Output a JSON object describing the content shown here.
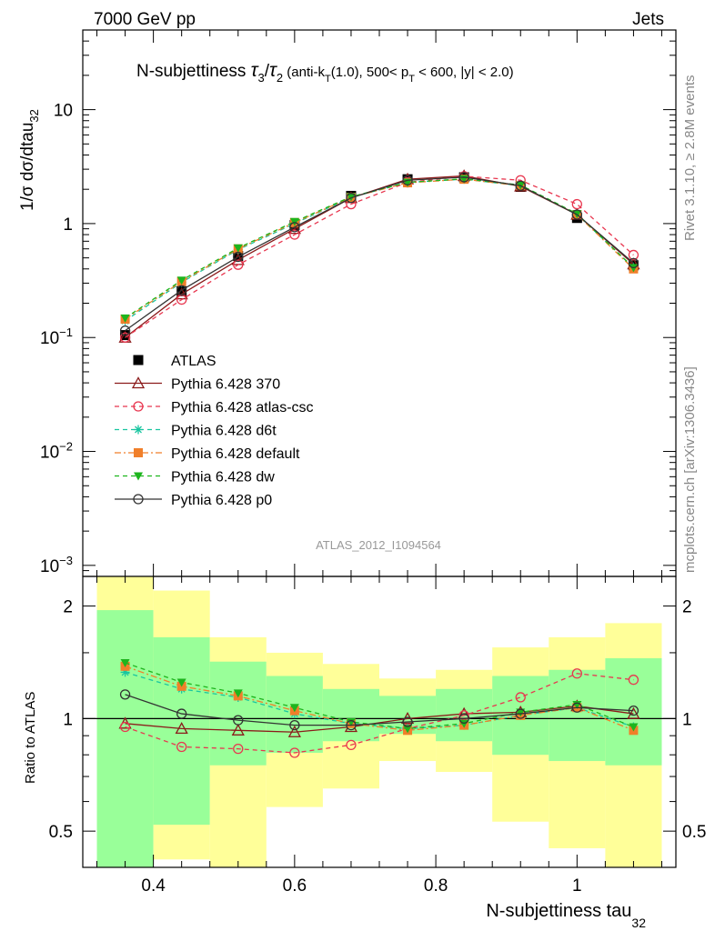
{
  "header": {
    "left": "7000 GeV pp",
    "right": "Jets"
  },
  "side_labels": {
    "rivet": "Rivet 3.1.10, ≥ 2.8M events",
    "mcplots": "mcplots.cern.ch [arXiv:1306.3436]"
  },
  "analysis_id": "ATLAS_2012_I1094564",
  "chart_data": [
    {
      "type": "line",
      "panel": "main",
      "title": "N-subjettiness τ₃/τ₂ (anti-k_T(1.0), 500< p_T < 600, |y| < 2.0)",
      "title_parts": {
        "main": "N-subjettiness ",
        "tau": "τ",
        "sub3": "3",
        "slash": "/",
        "sub2": "2",
        "cond_a": " (anti-k",
        "cond_T1": "T",
        "cond_b": "(1.0), 500< p",
        "cond_T2": "T",
        "cond_c": " < 600, |y| < 2.0)"
      },
      "ylabel": "1/σ dσ/dtau",
      "ylabel_sub": "32",
      "yscale": "log",
      "ylim": [
        0.0008,
        50
      ],
      "xlim": [
        0.3,
        1.14
      ],
      "y_ticks": [
        {
          "value": 10,
          "label": "10"
        },
        {
          "value": 1,
          "label": "1"
        },
        {
          "value": 0.1,
          "base": "10",
          "exp": "−1"
        },
        {
          "value": 0.01,
          "base": "10",
          "exp": "−2"
        },
        {
          "value": 0.001,
          "base": "10",
          "exp": "−3"
        }
      ],
      "x": [
        0.36,
        0.44,
        0.52,
        0.6,
        0.68,
        0.76,
        0.84,
        0.92,
        1.0,
        1.08
      ],
      "series": [
        {
          "name": "ATLAS",
          "color": "#000000",
          "marker": "square-filled",
          "line": "none",
          "values": [
            0.105,
            0.255,
            0.52,
            0.97,
            1.75,
            2.45,
            2.55,
            2.1,
            1.12,
            0.43
          ]
        },
        {
          "name": "Pythia 6.428 370",
          "color": "#8b1a1a",
          "marker": "triangle-open",
          "line": "solid",
          "values": [
            0.1,
            0.24,
            0.48,
            0.9,
            1.68,
            2.45,
            2.62,
            2.12,
            1.2,
            0.44
          ]
        },
        {
          "name": "Pythia 6.428 atlas-csc",
          "color": "#e8364f",
          "marker": "circle-open",
          "line": "dashed",
          "values": [
            0.1,
            0.215,
            0.435,
            0.8,
            1.48,
            2.3,
            2.6,
            2.4,
            1.48,
            0.53
          ]
        },
        {
          "name": "Pythia 6.428 d6t",
          "color": "#19c5a0",
          "marker": "star",
          "line": "dashed",
          "values": [
            0.14,
            0.305,
            0.59,
            1.0,
            1.7,
            2.3,
            2.45,
            2.15,
            1.2,
            0.41
          ]
        },
        {
          "name": "Pythia 6.428 default",
          "color": "#f07f2a",
          "marker": "square-filled",
          "line": "dashdot",
          "values": [
            0.145,
            0.31,
            0.6,
            1.02,
            1.7,
            2.28,
            2.45,
            2.15,
            1.2,
            0.4
          ]
        },
        {
          "name": "Pythia 6.428 dw",
          "color": "#1db51d",
          "marker": "triangle-down-filled",
          "line": "dashed",
          "values": [
            0.148,
            0.318,
            0.61,
            1.04,
            1.72,
            2.3,
            2.47,
            2.18,
            1.22,
            0.41
          ]
        },
        {
          "name": "Pythia 6.428 p0",
          "color": "#333333",
          "marker": "circle-open",
          "line": "solid",
          "values": [
            0.115,
            0.26,
            0.51,
            0.93,
            1.68,
            2.4,
            2.55,
            2.15,
            1.2,
            0.45
          ]
        }
      ],
      "legend_placement": "lower-left"
    },
    {
      "type": "line",
      "panel": "ratio",
      "ylabel": "Ratio to ATLAS",
      "xlabel": "N-subjettiness tau",
      "xlabel_sub": "32",
      "yscale": "log",
      "ylim": [
        0.4,
        2.4
      ],
      "xlim": [
        0.3,
        1.14
      ],
      "y_ticks": [
        {
          "value": 2,
          "label": "2"
        },
        {
          "value": 1,
          "label": "1"
        },
        {
          "value": 0.5,
          "label": "0.5"
        }
      ],
      "x_ticks": [
        {
          "value": 0.4,
          "label": "0.4"
        },
        {
          "value": 0.6,
          "label": "0.6"
        },
        {
          "value": 0.8,
          "label": "0.8"
        },
        {
          "value": 1.0,
          "label": "1"
        }
      ],
      "bin_edges": [
        0.32,
        0.4,
        0.48,
        0.56,
        0.64,
        0.72,
        0.8,
        0.88,
        0.96,
        1.04,
        1.12
      ],
      "band_outer": [
        [
          0.4,
          2.5
        ],
        [
          0.42,
          2.2
        ],
        [
          0.36,
          1.65
        ],
        [
          0.58,
          1.5
        ],
        [
          0.65,
          1.4
        ],
        [
          0.77,
          1.28
        ],
        [
          0.72,
          1.35
        ],
        [
          0.53,
          1.55
        ],
        [
          0.45,
          1.65
        ],
        [
          0.4,
          1.8
        ]
      ],
      "band_inner": [
        [
          0.4,
          1.95
        ],
        [
          0.52,
          1.65
        ],
        [
          0.75,
          1.42
        ],
        [
          0.81,
          1.3
        ],
        [
          0.87,
          1.2
        ],
        [
          0.91,
          1.15
        ],
        [
          0.87,
          1.2
        ],
        [
          0.8,
          1.3
        ],
        [
          0.77,
          1.35
        ],
        [
          0.75,
          1.45
        ]
      ],
      "band_colors": {
        "outer": "#ffff99",
        "inner": "#99ff99"
      },
      "x": [
        0.36,
        0.44,
        0.52,
        0.6,
        0.68,
        0.76,
        0.84,
        0.92,
        1.0,
        1.08
      ],
      "series": [
        {
          "name": "Pythia 6.428 370",
          "color": "#8b1a1a",
          "marker": "triangle-open",
          "line": "solid",
          "values": [
            0.97,
            0.94,
            0.93,
            0.92,
            0.95,
            1.0,
            1.03,
            1.04,
            1.08,
            1.03
          ]
        },
        {
          "name": "Pythia 6.428 atlas-csc",
          "color": "#e8364f",
          "marker": "circle-open",
          "line": "dashed",
          "values": [
            0.95,
            0.84,
            0.83,
            0.81,
            0.85,
            0.94,
            1.02,
            1.14,
            1.32,
            1.27
          ]
        },
        {
          "name": "Pythia 6.428 d6t",
          "color": "#19c5a0",
          "marker": "star",
          "line": "dashed",
          "values": [
            1.33,
            1.2,
            1.14,
            1.03,
            0.97,
            0.94,
            0.96,
            1.02,
            1.07,
            0.95
          ]
        },
        {
          "name": "Pythia 6.428 default",
          "color": "#f07f2a",
          "marker": "square-filled",
          "line": "dashdot",
          "values": [
            1.38,
            1.22,
            1.15,
            1.05,
            0.97,
            0.93,
            0.96,
            1.02,
            1.07,
            0.93
          ]
        },
        {
          "name": "Pythia 6.428 dw",
          "color": "#1db51d",
          "marker": "triangle-down-filled",
          "line": "dashed",
          "values": [
            1.41,
            1.25,
            1.17,
            1.07,
            0.98,
            0.94,
            0.97,
            1.04,
            1.09,
            0.95
          ]
        },
        {
          "name": "Pythia 6.428 p0",
          "color": "#333333",
          "marker": "circle-open",
          "line": "solid",
          "values": [
            1.16,
            1.03,
            0.99,
            0.96,
            0.96,
            0.98,
            1.0,
            1.03,
            1.07,
            1.05
          ]
        }
      ]
    }
  ]
}
